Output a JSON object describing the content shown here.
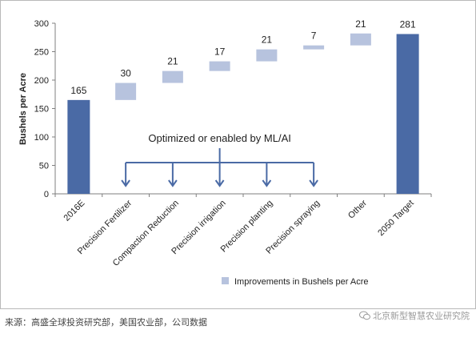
{
  "chart_data": {
    "type": "bar",
    "subtype": "waterfall",
    "ylabel": "Bushels per Acre",
    "ylim": [
      0,
      300
    ],
    "yticks": [
      0,
      50,
      100,
      150,
      200,
      250,
      300
    ],
    "grid": false,
    "categories": [
      "2016E",
      "Precision Fertilizer",
      "Compaction Reduction",
      "Precision irrigation",
      "Precision planting",
      "Precision spraying",
      "Other",
      "2050 Target"
    ],
    "bars": [
      {
        "category": "2016E",
        "kind": "total",
        "base": 0,
        "value": 165,
        "label": "165"
      },
      {
        "category": "Precision Fertilizer",
        "kind": "increment",
        "base": 165,
        "value": 30,
        "label": "30"
      },
      {
        "category": "Compaction Reduction",
        "kind": "increment",
        "base": 195,
        "value": 21,
        "label": "21"
      },
      {
        "category": "Precision irrigation",
        "kind": "increment",
        "base": 216,
        "value": 17,
        "label": "17"
      },
      {
        "category": "Precision planting",
        "kind": "increment",
        "base": 233,
        "value": 21,
        "label": "21"
      },
      {
        "category": "Precision spraying",
        "kind": "increment",
        "base": 254,
        "value": 7,
        "label": "7"
      },
      {
        "category": "Other",
        "kind": "increment",
        "base": 261,
        "value": 21,
        "label": "21"
      },
      {
        "category": "2050 Target",
        "kind": "total",
        "base": 0,
        "value": 281,
        "label": "281"
      }
    ],
    "annotation": {
      "text": "Optimized or enabled by ML/AI",
      "applies_to": [
        "Precision Fertilizer",
        "Compaction Reduction",
        "Precision irrigation",
        "Precision planting",
        "Precision spraying"
      ]
    },
    "legend": {
      "position": "bottom-right",
      "entries": [
        {
          "name": "Improvements in Bushels per Acre",
          "color": "#b7c3de"
        }
      ]
    },
    "colors": {
      "total": "#4a6aa5",
      "increment": "#b7c3de",
      "annotation": "#4a6aa5",
      "axis": "#7f7f7f"
    }
  },
  "footer": {
    "source": "来源：高盛全球投资研究部，美国农业部，公司数据",
    "watermark": "北京新型智慧农业研究院"
  }
}
